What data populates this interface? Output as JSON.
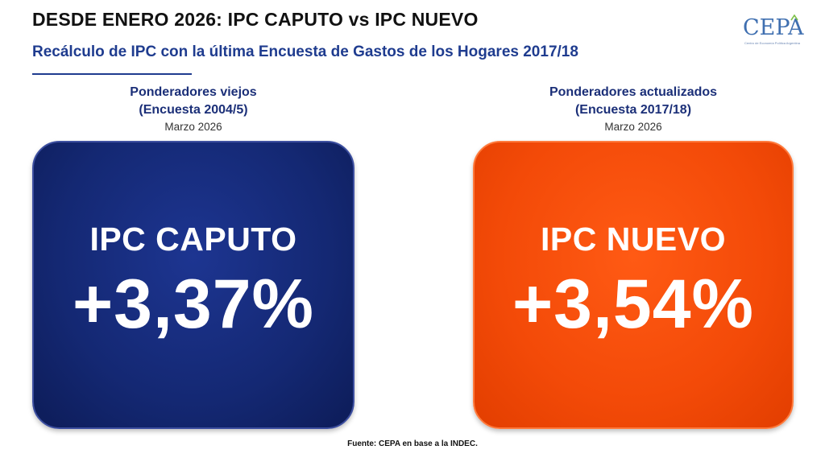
{
  "header": {
    "title": "DESDE ENERO 2026: IPC CAPUTO vs IPC NUEVO",
    "subtitle": "Recálculo de IPC con la última Encuesta de Gastos de los Hogares 2017/18"
  },
  "logo": {
    "text": "CEPA",
    "tagline": "Centro de Economía Política Argentina",
    "color": "#3f6fb0"
  },
  "left": {
    "heading_line1": "Ponderadores viejos",
    "heading_line2": "(Encuesta 2004/5)",
    "date": "Marzo 2026",
    "card_label": "IPC CAPUTO",
    "card_value": "+3,37%",
    "color": "#142873"
  },
  "right": {
    "heading_line1": "Ponderadores actualizados",
    "heading_line2": "(Encuesta 2017/18)",
    "date": "Marzo 2026",
    "card_label": "IPC NUEVO",
    "card_value": "+3,54%",
    "color": "#f34a08"
  },
  "footer": {
    "source": "Fuente: CEPA en base a la INDEC."
  }
}
